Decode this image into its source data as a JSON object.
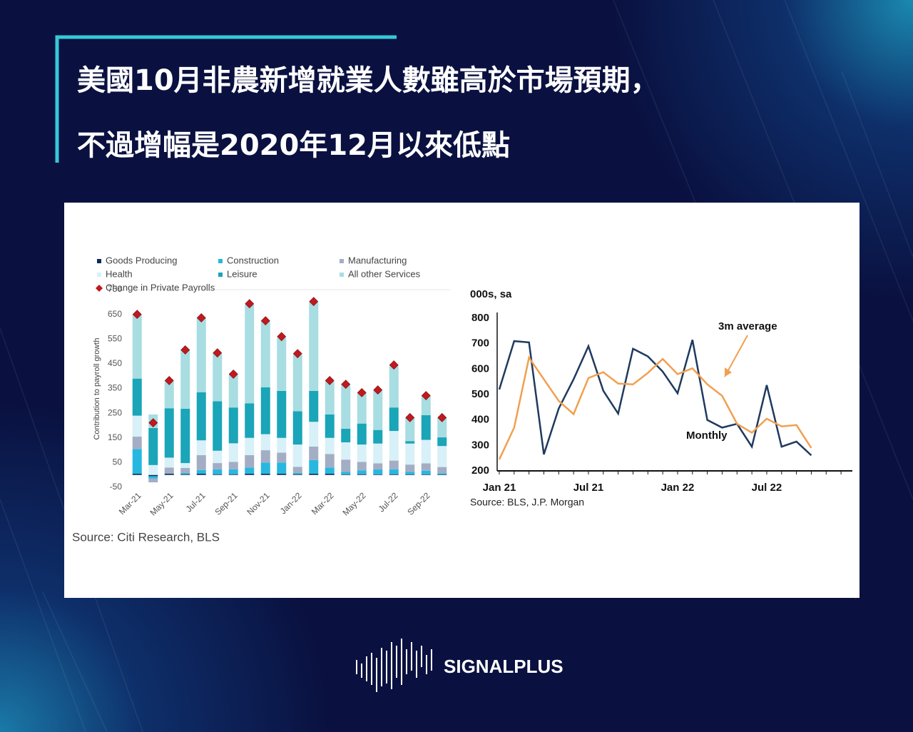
{
  "header": {
    "title": [
      "美國10月非農新增就業人數雖高於市場預期，",
      "不過增幅是2020年12月以來低點"
    ]
  },
  "chart_data": [
    {
      "type": "stacked_bar",
      "y_label": "Contribution to payroll growth",
      "source": "Source: Citi Research, BLS",
      "categories": [
        "Mar-21",
        null,
        "May-21",
        null,
        "Jul-21",
        null,
        "Sep-21",
        null,
        "Nov-21",
        null,
        "Jan-22",
        null,
        "Mar-22",
        null,
        "May-22",
        null,
        "Jul-22",
        null,
        "Sep-22",
        null
      ],
      "ylim": [
        -50,
        750
      ],
      "yticks": [
        -50,
        50,
        150,
        250,
        350,
        450,
        550,
        650,
        750
      ],
      "series": [
        {
          "name": "Goods Producing",
          "color": "#0d2a5c",
          "values": [
            5,
            -5,
            5,
            3,
            5,
            3,
            3,
            5,
            5,
            5,
            3,
            5,
            5,
            2,
            3,
            2,
            3,
            2,
            2,
            2
          ]
        },
        {
          "name": "Construction",
          "color": "#27b8e0",
          "values": [
            100,
            -10,
            0,
            5,
            15,
            20,
            20,
            25,
            45,
            45,
            5,
            55,
            25,
            10,
            15,
            20,
            20,
            10,
            15,
            5
          ]
        },
        {
          "name": "Manufacturing",
          "color": "#a3aec4",
          "values": [
            50,
            -15,
            25,
            20,
            60,
            25,
            30,
            50,
            50,
            40,
            25,
            55,
            55,
            50,
            35,
            25,
            35,
            30,
            30,
            25
          ]
        },
        {
          "name": "Health",
          "color": "#d8f0f8",
          "values": [
            85,
            40,
            40,
            20,
            60,
            50,
            75,
            70,
            65,
            60,
            90,
            100,
            65,
            70,
            70,
            80,
            120,
            85,
            95,
            85
          ]
        },
        {
          "name": "Leisure",
          "color": "#1aa5b8",
          "values": [
            150,
            150,
            200,
            220,
            195,
            200,
            145,
            140,
            190,
            190,
            135,
            125,
            95,
            55,
            85,
            55,
            95,
            10,
            100,
            35
          ]
        },
        {
          "name": "All other Services",
          "color": "#a8dde2",
          "values": [
            260,
            55,
            110,
            240,
            300,
            195,
            135,
            400,
            270,
            215,
            230,
            360,
            135,
            180,
            125,
            160,
            170,
            95,
            80,
            80
          ]
        }
      ],
      "total": {
        "name": "Change in  Private Payrolls",
        "color": "#c0191e",
        "values": [
          650,
          211,
          382,
          506,
          636,
          494,
          408,
          693,
          624,
          560,
          491,
          702,
          382,
          367,
          333,
          344,
          445,
          232,
          321,
          232
        ]
      }
    },
    {
      "type": "line",
      "unit_label": "000s, sa",
      "source": "Source: BLS, J.P. Morgan",
      "categories": [
        "Jan 21",
        null,
        null,
        null,
        null,
        null,
        "Jul 21",
        null,
        null,
        null,
        null,
        null,
        "Jan 22",
        null,
        null,
        null,
        null,
        null,
        "Jul 22",
        null,
        null,
        null
      ],
      "ylim": [
        200,
        800
      ],
      "yticks": [
        200,
        300,
        400,
        500,
        600,
        700,
        800
      ],
      "series": [
        {
          "name": "Monthly",
          "color": "#1f3a5f",
          "values": [
            520,
            710,
            705,
            265,
            445,
            560,
            690,
            515,
            425,
            680,
            650,
            590,
            505,
            715,
            400,
            370,
            385,
            295,
            537,
            295,
            315,
            261
          ]
        },
        {
          "name": "3m average",
          "color": "#f0a050",
          "values": [
            245,
            370,
            645,
            560,
            475,
            423,
            565,
            588,
            543,
            540,
            585,
            640,
            580,
            603,
            540,
            495,
            385,
            350,
            405,
            375,
            380,
            290
          ]
        }
      ]
    }
  ],
  "logo": {
    "text": "SIGNALPLUS"
  }
}
